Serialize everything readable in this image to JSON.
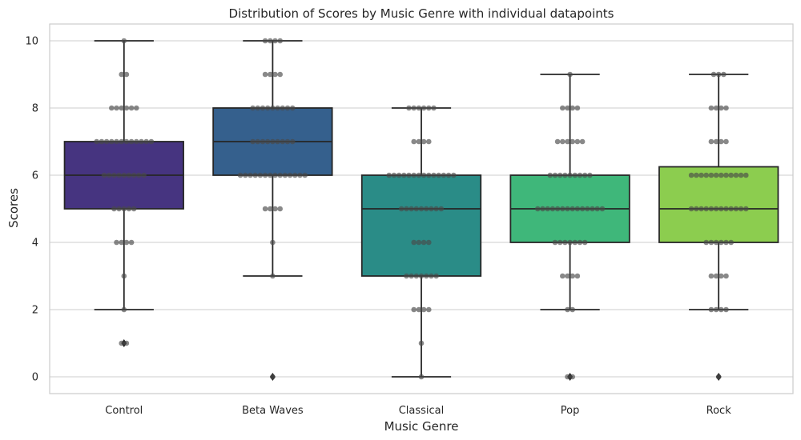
{
  "chart_data": {
    "type": "box",
    "title": "Distribution of Scores by Music Genre with individual datapoints",
    "xlabel": "Music Genre",
    "ylabel": "Scores",
    "ylim": [
      -0.5,
      10.5
    ],
    "yticks": [
      0,
      2,
      4,
      6,
      8,
      10
    ],
    "ytick_labels": [
      "0",
      "2",
      "4",
      "6",
      "8",
      "10"
    ],
    "grid": "horizontal",
    "categories": [
      "Control",
      "Beta Waves",
      "Classical",
      "Pop",
      "Rock"
    ],
    "colors": [
      "#463480",
      "#35608d",
      "#2a8c87",
      "#3fb77a",
      "#8ccd4f"
    ],
    "boxes": [
      {
        "category": "Control",
        "whisker_low": 2,
        "q1": 5,
        "median": 6,
        "q3": 7,
        "whisker_high": 10,
        "outliers": [
          1
        ]
      },
      {
        "category": "Beta Waves",
        "whisker_low": 3,
        "q1": 6,
        "median": 7,
        "q3": 8,
        "whisker_high": 10,
        "outliers": [
          0
        ]
      },
      {
        "category": "Classical",
        "whisker_low": 0,
        "q1": 3,
        "median": 5,
        "q3": 6,
        "whisker_high": 8,
        "outliers": []
      },
      {
        "category": "Pop",
        "whisker_low": 2,
        "q1": 4,
        "median": 5,
        "q3": 6,
        "whisker_high": 9,
        "outliers": [
          0
        ]
      },
      {
        "category": "Rock",
        "whisker_low": 2,
        "q1": 4,
        "median": 5,
        "q3": 6.25,
        "whisker_high": 9,
        "outliers": [
          0
        ]
      }
    ],
    "points": [
      {
        "category": "Control",
        "counts": {
          "1": 2,
          "2": 1,
          "3": 1,
          "4": 4,
          "5": 5,
          "6": 9,
          "7": 12,
          "8": 6,
          "9": 2,
          "10": 1
        }
      },
      {
        "category": "Beta Waves",
        "counts": {
          "0": 1,
          "3": 1,
          "4": 1,
          "5": 4,
          "6": 14,
          "7": 9,
          "8": 9,
          "9": 4,
          "10": 4
        }
      },
      {
        "category": "Classical",
        "counts": {
          "0": 1,
          "1": 1,
          "2": 4,
          "3": 7,
          "4": 4,
          "5": 9,
          "6": 14,
          "7": 4,
          "8": 6
        }
      },
      {
        "category": "Pop",
        "counts": {
          "0": 2,
          "2": 2,
          "3": 4,
          "4": 7,
          "5": 14,
          "6": 9,
          "7": 6,
          "8": 4,
          "9": 1
        }
      },
      {
        "category": "Rock",
        "counts": {
          "0": 1,
          "2": 4,
          "3": 4,
          "4": 6,
          "5": 12,
          "6": 12,
          "7": 4,
          "8": 4,
          "9": 3
        }
      }
    ]
  }
}
